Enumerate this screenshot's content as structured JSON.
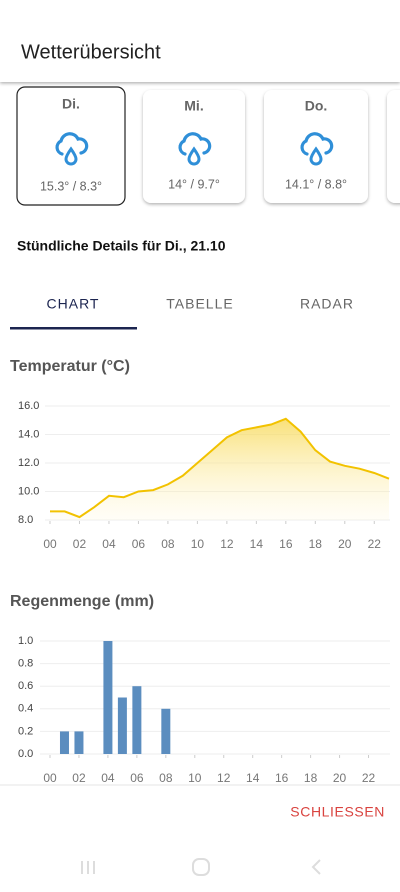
{
  "header": {
    "title": "Wetterübersicht"
  },
  "days": [
    {
      "day": "Di.",
      "temps": "15.3° / 8.3°"
    },
    {
      "day": "Mi.",
      "temps": "14° / 9.7°"
    },
    {
      "day": "Do.",
      "temps": "14.1° / 8.8°"
    }
  ],
  "subtitle": "Stündliche Details für Di., 21.10",
  "tabs": [
    "CHART",
    "TABELLE",
    "RADAR"
  ],
  "chart_data": [
    {
      "type": "line",
      "title": "Temperatur (°C)",
      "x": [
        0,
        1,
        2,
        3,
        4,
        5,
        6,
        7,
        8,
        9,
        10,
        11,
        12,
        13,
        14,
        15,
        16,
        17,
        18,
        19,
        20,
        21,
        22,
        23
      ],
      "series": [
        {
          "color": "#f2c200",
          "values": [
            8.6,
            8.6,
            8.2,
            8.9,
            9.7,
            9.6,
            10.0,
            10.1,
            10.5,
            11.1,
            12.0,
            12.9,
            13.8,
            14.3,
            14.5,
            14.7,
            15.1,
            14.2,
            12.9,
            12.1,
            11.8,
            11.6,
            11.3,
            10.9
          ]
        }
      ],
      "xlim": [
        0,
        23
      ],
      "xticks": [
        {
          "value": 0,
          "label": "00"
        },
        {
          "value": 2,
          "label": "02"
        },
        {
          "value": 4,
          "label": "04"
        },
        {
          "value": 6,
          "label": "06"
        },
        {
          "value": 8,
          "label": "08"
        },
        10,
        12,
        14,
        16,
        18,
        20,
        22
      ],
      "ylim": [
        8,
        16
      ],
      "yticks": [
        {
          "value": 8,
          "label": "8.0"
        },
        {
          "value": 10,
          "label": "10.0"
        },
        {
          "value": 12,
          "label": "12.0"
        },
        {
          "value": 14,
          "label": "14.0"
        },
        {
          "value": 16,
          "label": "16.0"
        }
      ],
      "grid": true
    },
    {
      "type": "bar",
      "title": "Regenmenge (mm)",
      "x": [
        0,
        1,
        2,
        3,
        4,
        5,
        6,
        7,
        8,
        9,
        10,
        11,
        12,
        13,
        14,
        15,
        16,
        17,
        18,
        19,
        20,
        21,
        22,
        23
      ],
      "series": [
        {
          "color": "#5b8dbf",
          "values": [
            0,
            0.2,
            0.2,
            0,
            1.0,
            0.5,
            0.6,
            0,
            0.4,
            0,
            0,
            0,
            0,
            0,
            0,
            0,
            0,
            0,
            0,
            0,
            0,
            0,
            0,
            0
          ]
        }
      ],
      "xlim": [
        0,
        23
      ],
      "xticks": [
        {
          "value": 0,
          "label": "00"
        },
        {
          "value": 2,
          "label": "02"
        },
        {
          "value": 4,
          "label": "04"
        },
        {
          "value": 6,
          "label": "06"
        },
        {
          "value": 8,
          "label": "08"
        },
        10,
        12,
        14,
        16,
        18,
        20,
        22
      ],
      "ylim": [
        0,
        1
      ],
      "yticks": [
        {
          "value": 0,
          "label": "0.0"
        },
        0.2,
        0.4,
        0.6,
        0.8,
        {
          "value": 1,
          "label": "1.0"
        }
      ],
      "grid": true
    }
  ],
  "close_button": "SCHLIESSEN"
}
